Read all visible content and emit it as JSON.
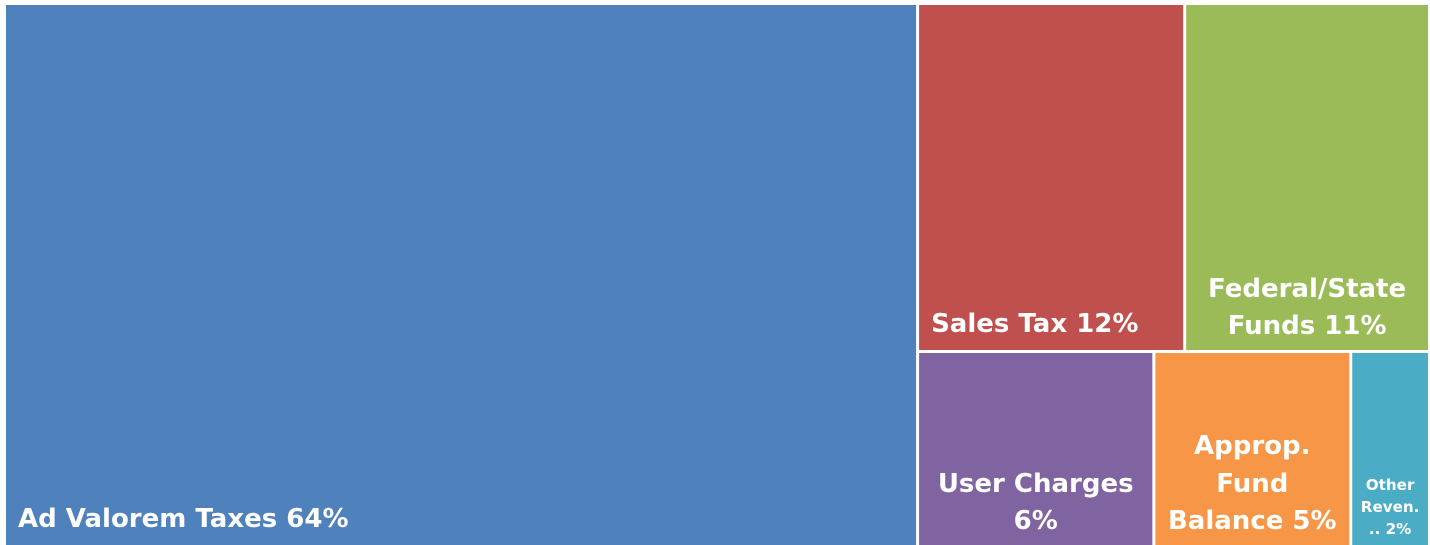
{
  "chart_data": {
    "type": "treemap",
    "categories": [
      "Ad Valorem Taxes",
      "Sales Tax",
      "Federal/State Funds",
      "User Charges",
      "Approp. Fund Balance",
      "Other Reven..."
    ],
    "values": [
      64,
      12,
      11,
      6,
      5,
      2
    ],
    "value_labels": [
      "64%",
      "12%",
      "11%",
      "6%",
      "5%",
      "2%"
    ],
    "colors": [
      "#4f81bd",
      "#c0504d",
      "#9bbb59",
      "#8064a2",
      "#f79646",
      "#4bacc6"
    ]
  }
}
